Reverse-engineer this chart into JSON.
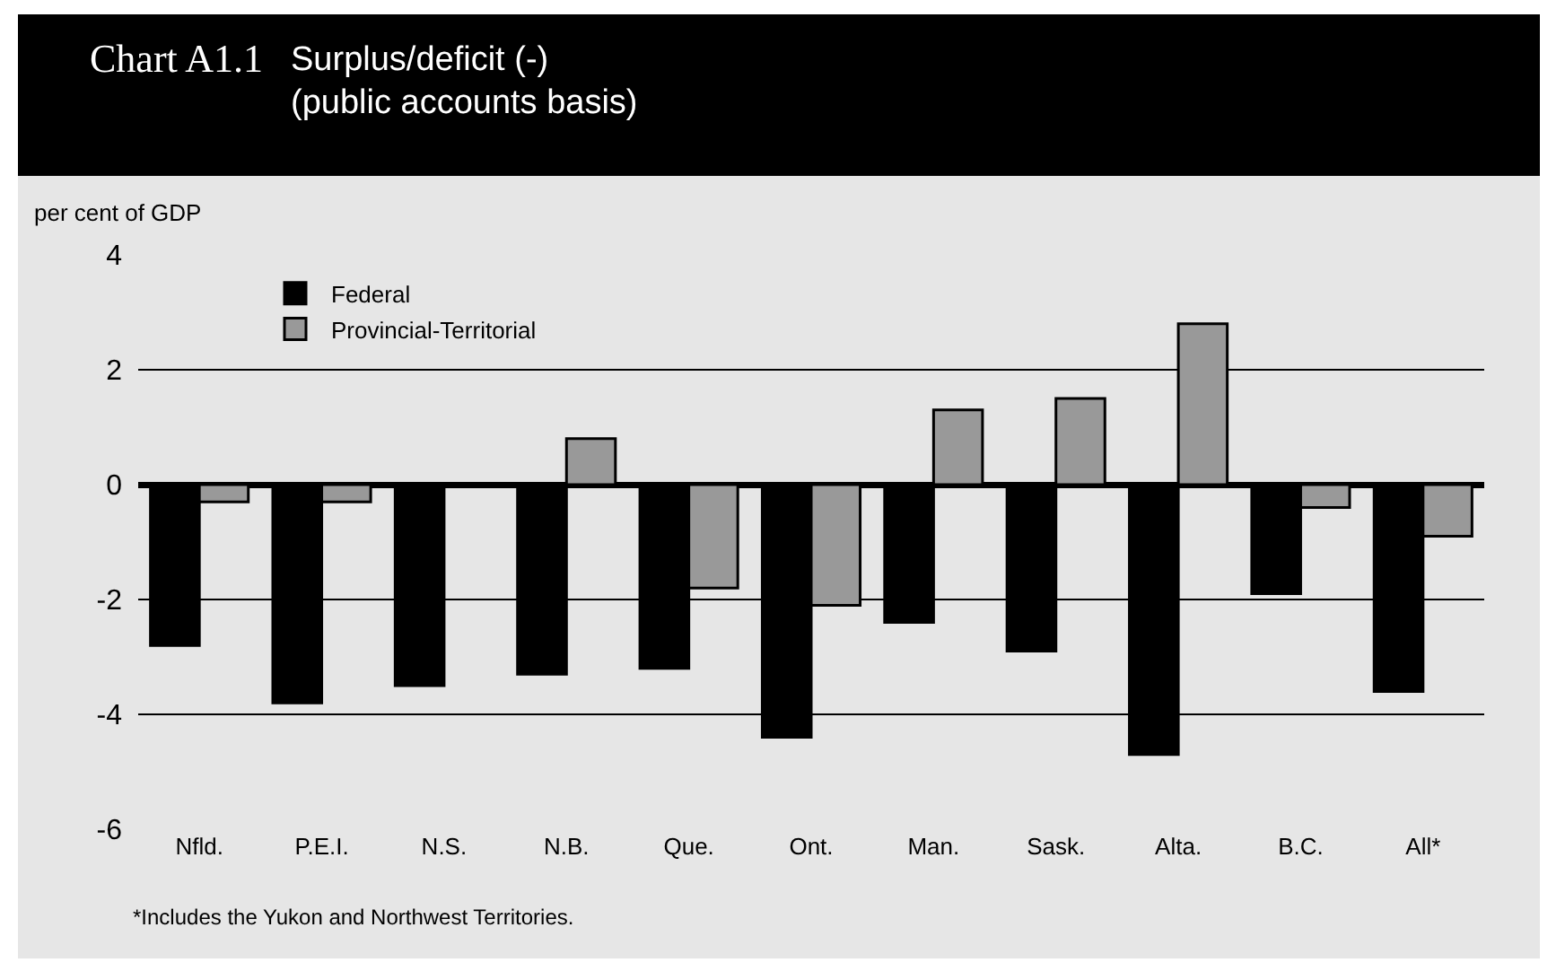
{
  "chart_data": {
    "type": "bar",
    "title": "Chart A1.1",
    "subtitle": "Surplus/deficit (-)\n(public accounts basis)",
    "ylabel": "per cent of GDP",
    "categories": [
      "Nfld.",
      "P.E.I.",
      "N.S.",
      "N.B.",
      "Que.",
      "Ont.",
      "Man.",
      "Sask.",
      "Alta.",
      "B.C.",
      "All*"
    ],
    "series": [
      {
        "name": "Federal",
        "color": "#000000",
        "values": [
          -2.8,
          -3.8,
          -3.5,
          -3.3,
          -3.2,
          -4.4,
          -2.4,
          -2.9,
          -4.7,
          -1.9,
          -3.6
        ]
      },
      {
        "name": "Provincial-Territorial",
        "color": "#999999",
        "values": [
          -0.3,
          -0.3,
          null,
          0.8,
          -1.8,
          -2.1,
          1.3,
          1.5,
          2.8,
          -0.4,
          -0.9
        ]
      }
    ],
    "ylim": [
      -6,
      4
    ],
    "yticks": [
      -6,
      -4,
      -2,
      0,
      2,
      4
    ],
    "grid": "y",
    "legend": "top left",
    "annotations": [
      "*Includes the Yukon and Northwest Territories."
    ]
  }
}
